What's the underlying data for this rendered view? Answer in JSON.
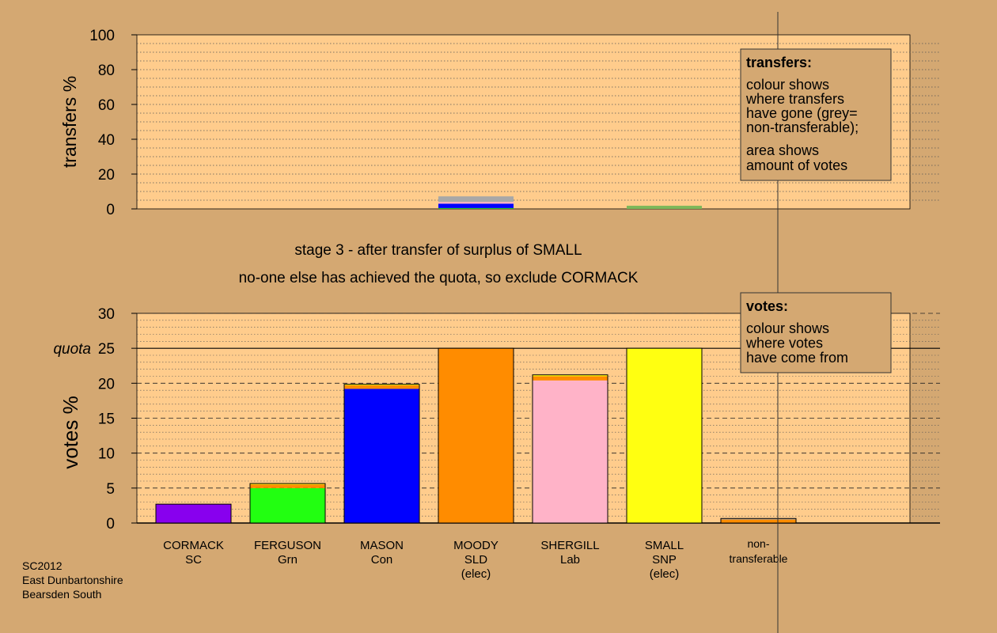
{
  "colors": {
    "page_bg": "#d4a872",
    "plot_bg": "#ffcc8c",
    "grey_nontransferable": "#a8a8a8"
  },
  "top_chart": {
    "ylabel": "transfers %",
    "yticks": [
      "0",
      "20",
      "40",
      "60",
      "80",
      "100"
    ],
    "ylim": [
      0,
      100
    ],
    "legend": {
      "title": "transfers:",
      "lines1": [
        "colour shows",
        "where transfers",
        "have gone (grey=",
        "non-transferable);"
      ],
      "lines2": [
        "area shows",
        "amount of votes"
      ]
    }
  },
  "captions": {
    "line1": "stage 3 - after transfer of surplus of SMALL",
    "line2": "no-one else has achieved the quota, so exclude CORMACK"
  },
  "bottom_chart": {
    "ylabel": "votes %",
    "quota_label": "quota",
    "quota_value": 25,
    "yticks": [
      "0",
      "5",
      "10",
      "15",
      "20",
      "25",
      "30"
    ],
    "ylim": [
      0,
      30
    ],
    "legend": {
      "title": "votes:",
      "lines": [
        "colour shows",
        "where votes",
        "have come from"
      ]
    }
  },
  "candidates": [
    {
      "lines": [
        "CORMACK",
        "SC"
      ]
    },
    {
      "lines": [
        "FERGUSON",
        "Grn"
      ]
    },
    {
      "lines": [
        "MASON",
        "Con"
      ]
    },
    {
      "lines": [
        "MOODY",
        "SLD",
        "(elec)"
      ]
    },
    {
      "lines": [
        "SHERGILL",
        "Lab"
      ]
    },
    {
      "lines": [
        "SMALL",
        "SNP",
        "(elec)"
      ]
    }
  ],
  "nontransferable_label": [
    "non-",
    "transferable"
  ],
  "footer": {
    "lines": [
      "SC2012",
      "East Dunbartonshire",
      "Bearsden South"
    ]
  },
  "chart_data": [
    {
      "type": "bar",
      "ylabel": "transfers %",
      "ylim": [
        0,
        100
      ],
      "categories": [
        "CORMACK",
        "FERGUSON",
        "MASON",
        "MOODY",
        "SHERGILL",
        "SMALL",
        "non-transferable"
      ],
      "stacks": [
        {
          "category": "MOODY",
          "segments": [
            {
              "color": "#22c02a",
              "value": 0.5
            },
            {
              "color": "#0000ff",
              "value": 2.5
            },
            {
              "color": "#ffb3c8",
              "value": 1.0
            },
            {
              "color": "#a8a8a8",
              "value": 3.2
            }
          ]
        },
        {
          "category": "SMALL",
          "segments": [
            {
              "color": "#7db85a",
              "value": 1.8
            }
          ]
        }
      ]
    },
    {
      "type": "bar",
      "ylabel": "votes %",
      "ylim": [
        0,
        30
      ],
      "quota": 25,
      "categories": [
        "CORMACK SC",
        "FERGUSON Grn",
        "MASON Con",
        "MOODY SLD (elec)",
        "SHERGILL Lab",
        "SMALL SNP (elec)",
        "non-transferable"
      ],
      "stacks": [
        {
          "category": "CORMACK SC",
          "segments": [
            {
              "color": "#8800ee",
              "value": 2.7
            }
          ]
        },
        {
          "category": "FERGUSON Grn",
          "segments": [
            {
              "color": "#22ff11",
              "value": 5.0
            },
            {
              "color": "#ff8c00",
              "value": 0.5
            },
            {
              "color": "#ffff11",
              "value": 0.15
            }
          ]
        },
        {
          "category": "MASON Con",
          "segments": [
            {
              "color": "#0000ff",
              "value": 19.2
            },
            {
              "color": "#ff8c00",
              "value": 0.5
            },
            {
              "color": "#ffff11",
              "value": 0.15
            }
          ]
        },
        {
          "category": "MOODY SLD (elec)",
          "segments": [
            {
              "color": "#ff8c00",
              "value": 25.0
            }
          ]
        },
        {
          "category": "SHERGILL Lab",
          "segments": [
            {
              "color": "#ffb3c8",
              "value": 20.4
            },
            {
              "color": "#ff8c00",
              "value": 0.6
            },
            {
              "color": "#ffff11",
              "value": 0.2
            }
          ]
        },
        {
          "category": "SMALL SNP (elec)",
          "segments": [
            {
              "color": "#ffff11",
              "value": 25.0
            }
          ]
        },
        {
          "category": "non-transferable",
          "segments": [
            {
              "color": "#ff8c00",
              "value": 0.5
            },
            {
              "color": "#a8a8a8",
              "value": 0.15
            }
          ]
        }
      ]
    }
  ]
}
